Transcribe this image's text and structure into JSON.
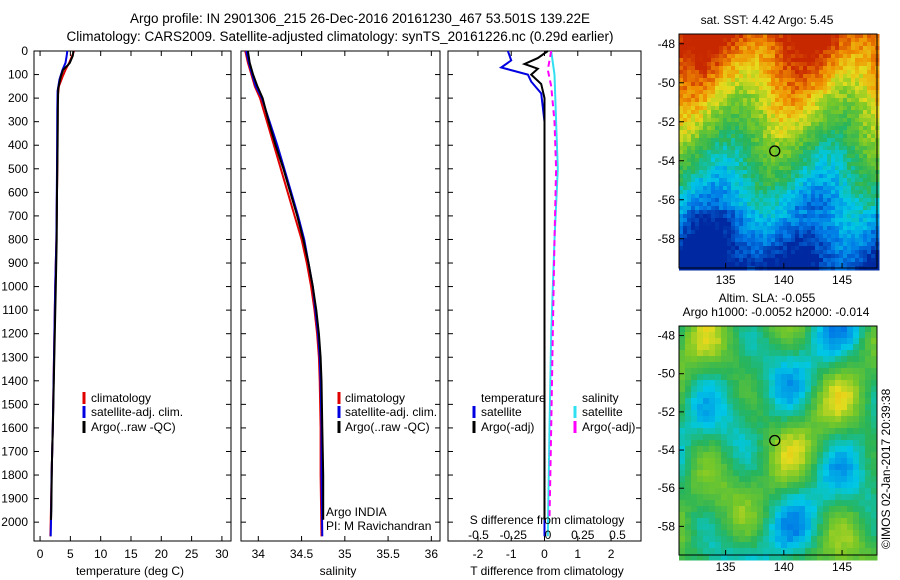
{
  "header": {
    "title_line1": "Argo profile: IN 2901306_215 26-Dec-2016 20161230_467 53.501S 139.22E",
    "title_line2": "Climatology: CARS2009. Satellite-adjusted climatology: synTS_20161226.nc (0.29d earlier)"
  },
  "colors": {
    "climatology": "#e00000",
    "satellite": "#0000e0",
    "argo": "#000000",
    "satellite_salinity": "#30e0f0",
    "argo_salinity_adj": "#ff00ff"
  },
  "chart_data": [
    {
      "type": "line",
      "panel": "temperature",
      "xlabel": "temperature (deg C)",
      "xlim": [
        -1,
        31.5
      ],
      "ylim": [
        2080,
        0
      ],
      "xticks": [
        0,
        5,
        10,
        15,
        20,
        25,
        30
      ],
      "yticks": [
        0,
        100,
        200,
        300,
        400,
        500,
        600,
        700,
        800,
        900,
        1000,
        1100,
        1200,
        1300,
        1400,
        1500,
        1600,
        1700,
        1800,
        1900,
        2000
      ],
      "legend": [
        "climatology",
        "satellite-adj. clim.",
        "Argo(..raw -QC)"
      ],
      "series": [
        {
          "name": "climatology",
          "color": "#e00000",
          "points": [
            [
              5.6,
              0
            ],
            [
              5.3,
              20
            ],
            [
              4.8,
              50
            ],
            [
              4.2,
              80
            ],
            [
              3.7,
              110
            ],
            [
              3.1,
              150
            ],
            [
              2.9,
              200
            ],
            [
              2.9,
              300
            ],
            [
              2.85,
              500
            ],
            [
              2.7,
              800
            ],
            [
              2.5,
              1000
            ],
            [
              2.3,
              1300
            ],
            [
              2.1,
              1600
            ],
            [
              1.9,
              1800
            ],
            [
              1.75,
              2000
            ],
            [
              1.7,
              2060
            ]
          ]
        },
        {
          "name": "satellite-adj. clim.",
          "color": "#0000e0",
          "points": [
            [
              4.5,
              0
            ],
            [
              4.4,
              20
            ],
            [
              4.2,
              50
            ],
            [
              3.7,
              80
            ],
            [
              3.2,
              120
            ],
            [
              2.9,
              170
            ],
            [
              2.85,
              250
            ],
            [
              2.8,
              500
            ],
            [
              2.7,
              800
            ],
            [
              2.5,
              1000
            ],
            [
              2.3,
              1300
            ],
            [
              2.1,
              1600
            ],
            [
              1.9,
              1800
            ],
            [
              1.8,
              2000
            ],
            [
              1.75,
              2060
            ]
          ]
        },
        {
          "name": "Argo(..raw -QC)",
          "color": "#000000",
          "points": [
            [
              5.5,
              0
            ],
            [
              5.4,
              20
            ],
            [
              4.9,
              50
            ],
            [
              4.6,
              60
            ],
            [
              3.8,
              80
            ],
            [
              3.4,
              110
            ],
            [
              3.0,
              160
            ],
            [
              2.95,
              230
            ],
            [
              2.9,
              400
            ],
            [
              2.8,
              600
            ],
            [
              2.75,
              800
            ],
            [
              2.6,
              1000
            ],
            [
              2.35,
              1300
            ],
            [
              2.15,
              1550
            ],
            [
              1.95,
              1750
            ],
            [
              1.85,
              1950
            ],
            [
              1.8,
              1990
            ]
          ]
        }
      ]
    },
    {
      "type": "line",
      "panel": "salinity",
      "xlabel": "salinity",
      "xlim": [
        33.8,
        36.1
      ],
      "ylim": [
        2080,
        0
      ],
      "xticks": [
        34,
        34.5,
        35,
        35.5,
        36
      ],
      "legend": [
        "climatology",
        "satellite-adj. clim.",
        "Argo(..raw -QC)"
      ],
      "annotation": [
        "Argo INDIA",
        "PI: M Ravichandran"
      ],
      "series": [
        {
          "name": "climatology",
          "color": "#e00000",
          "points": [
            [
              33.85,
              0
            ],
            [
              33.88,
              50
            ],
            [
              33.92,
              100
            ],
            [
              33.96,
              150
            ],
            [
              34.02,
              200
            ],
            [
              34.1,
              300
            ],
            [
              34.18,
              400
            ],
            [
              34.26,
              500
            ],
            [
              34.34,
              600
            ],
            [
              34.42,
              700
            ],
            [
              34.5,
              800
            ],
            [
              34.56,
              900
            ],
            [
              34.61,
              1000
            ],
            [
              34.65,
              1100
            ],
            [
              34.68,
              1200
            ],
            [
              34.7,
              1300
            ],
            [
              34.71,
              1400
            ],
            [
              34.72,
              1600
            ],
            [
              34.72,
              1800
            ],
            [
              34.73,
              2060
            ]
          ]
        },
        {
          "name": "satellite-adj. clim.",
          "color": "#0000e0",
          "points": [
            [
              33.86,
              0
            ],
            [
              33.89,
              50
            ],
            [
              33.93,
              100
            ],
            [
              33.97,
              150
            ],
            [
              34.04,
              200
            ],
            [
              34.13,
              300
            ],
            [
              34.22,
              400
            ],
            [
              34.3,
              500
            ],
            [
              34.38,
              600
            ],
            [
              34.46,
              700
            ],
            [
              34.53,
              800
            ],
            [
              34.58,
              900
            ],
            [
              34.63,
              1000
            ],
            [
              34.66,
              1100
            ],
            [
              34.69,
              1200
            ],
            [
              34.71,
              1300
            ],
            [
              34.72,
              1400
            ],
            [
              34.73,
              1600
            ],
            [
              34.73,
              1800
            ],
            [
              34.74,
              2060
            ]
          ]
        },
        {
          "name": "Argo(..raw -QC)",
          "color": "#000000",
          "points": [
            [
              33.88,
              0
            ],
            [
              33.9,
              50
            ],
            [
              33.94,
              100
            ],
            [
              33.99,
              150
            ],
            [
              34.05,
              200
            ],
            [
              34.12,
              300
            ],
            [
              34.2,
              400
            ],
            [
              34.29,
              500
            ],
            [
              34.37,
              600
            ],
            [
              34.45,
              700
            ],
            [
              34.52,
              800
            ],
            [
              34.58,
              900
            ],
            [
              34.63,
              1000
            ],
            [
              34.67,
              1100
            ],
            [
              34.7,
              1200
            ],
            [
              34.72,
              1300
            ],
            [
              34.73,
              1400
            ],
            [
              34.74,
              1600
            ],
            [
              34.75,
              1800
            ],
            [
              34.75,
              1990
            ]
          ]
        }
      ]
    },
    {
      "type": "line",
      "panel": "difference",
      "xlabel": "T difference from climatology",
      "xlabel_top": "S difference from climatology",
      "xlim": [
        -2.9,
        2.9
      ],
      "ylim": [
        2080,
        0
      ],
      "xticks": [
        -2,
        -1,
        0,
        1,
        2
      ],
      "xticks_top": [
        "-0.5",
        "-0.25",
        "0",
        "0.25",
        "0.5"
      ],
      "legend_temperature": [
        "temperature",
        "satellite",
        "Argo(-adj)"
      ],
      "legend_salinity": [
        "salinity",
        "satellite",
        "Argo(-adj)"
      ],
      "series": [
        {
          "name": "satellite",
          "color": "#0000e0",
          "points": [
            [
              -1.1,
              0
            ],
            [
              -1.0,
              40
            ],
            [
              -1.3,
              70
            ],
            [
              -0.5,
              100
            ],
            [
              -0.4,
              130
            ],
            [
              -0.1,
              180
            ],
            [
              0,
              300
            ],
            [
              0,
              800
            ],
            [
              0,
              1300
            ],
            [
              0,
              2060
            ]
          ]
        },
        {
          "name": "Argo(-adj)",
          "color": "#000000",
          "points": [
            [
              0.1,
              0
            ],
            [
              -0.2,
              30
            ],
            [
              -0.6,
              55
            ],
            [
              -0.2,
              75
            ],
            [
              -0.4,
              100
            ],
            [
              -0.1,
              140
            ],
            [
              0,
              200
            ],
            [
              0,
              500
            ],
            [
              0,
              1000
            ],
            [
              0,
              1500
            ],
            [
              0,
              1990
            ]
          ]
        },
        {
          "name": "satellite",
          "color": "#30e0f0",
          "points": [
            [
              0.2,
              0
            ],
            [
              0.3,
              100
            ],
            [
              0.35,
              300
            ],
            [
              0.4,
              500
            ],
            [
              0.3,
              800
            ],
            [
              0.2,
              1200
            ],
            [
              0.15,
              1600
            ],
            [
              0.1,
              2060
            ]
          ]
        },
        {
          "name": "Argo(-adj)",
          "color": "#ff00ff",
          "points": [
            [
              0.2,
              0
            ],
            [
              0.1,
              80
            ],
            [
              0.2,
              150
            ],
            [
              0.3,
              300
            ],
            [
              0.35,
              500
            ],
            [
              0.3,
              800
            ],
            [
              0.25,
              1200
            ],
            [
              0.2,
              1600
            ],
            [
              0.15,
              1990
            ]
          ]
        }
      ]
    },
    {
      "type": "heatmap",
      "panel": "sst_map",
      "title": "sat. SST: 4.42  Argo: 5.45",
      "xlim": [
        131,
        148
      ],
      "ylim": [
        -59.5,
        -47.5
      ],
      "xticks": [
        135,
        140,
        145
      ],
      "yticks": [
        -48,
        -50,
        -52,
        -54,
        -56,
        -58
      ],
      "argo_position": [
        139.22,
        -53.5
      ]
    },
    {
      "type": "heatmap",
      "panel": "sla_map",
      "title_line1": "Altim. SLA: -0.055",
      "title_line2": "Argo h1000: -0.0052 h2000: -0.014",
      "xlim": [
        131,
        148
      ],
      "ylim": [
        -59.5,
        -47.5
      ],
      "xticks": [
        135,
        140,
        145
      ],
      "yticks": [
        -48,
        -50,
        -52,
        -54,
        -56,
        -58
      ],
      "argo_position": [
        139.22,
        -53.5
      ]
    }
  ],
  "footer": {
    "credit": "©IMOS 02-Jan-2017 20:39:38"
  }
}
